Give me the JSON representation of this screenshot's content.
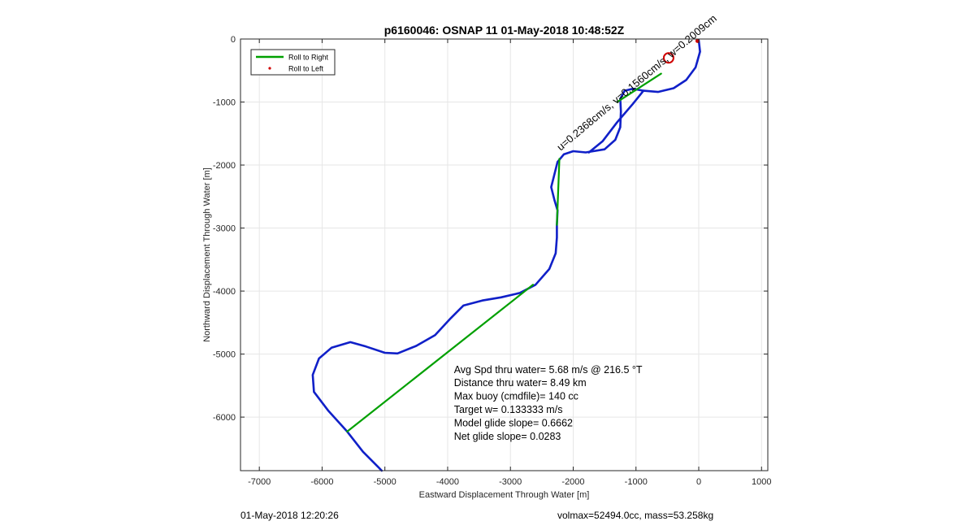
{
  "chart_data": {
    "type": "line",
    "title": "p6160046: OSNAP 11 01-May-2018 10:48:52Z",
    "xlabel": "Eastward Displacement Through Water [m]",
    "ylabel": "Northward Displacement Through Water [m]",
    "xlim": [
      -7300,
      1100
    ],
    "ylim": [
      -6850,
      0
    ],
    "xticks": [
      -7000,
      -6000,
      -5000,
      -4000,
      -3000,
      -2000,
      -1000,
      0,
      1000
    ],
    "yticks": [
      0,
      -1000,
      -2000,
      -3000,
      -4000,
      -5000,
      -6000
    ],
    "grid": true,
    "legend_position": "top-left",
    "legend": [
      {
        "label": "Roll to Right",
        "color": "#00a000",
        "style": "line"
      },
      {
        "label": "Roll to Left",
        "color": "#d00000",
        "style": "dot"
      }
    ],
    "series": [
      {
        "color": "#1020c8",
        "points": [
          [
            0,
            -20
          ],
          [
            20,
            -200
          ],
          [
            -50,
            -450
          ],
          [
            -200,
            -650
          ],
          [
            -400,
            -780
          ],
          [
            -650,
            -840
          ],
          [
            -880,
            -820
          ],
          [
            -1050,
            -790
          ],
          [
            -1180,
            -820
          ],
          [
            -1250,
            -950
          ],
          [
            -1240,
            -1150
          ],
          [
            -1250,
            -1400
          ],
          [
            -1330,
            -1600
          ],
          [
            -1500,
            -1750
          ],
          [
            -1800,
            -1800
          ],
          [
            -2000,
            -1780
          ],
          [
            -2150,
            -1830
          ],
          [
            -2250,
            -1950
          ],
          [
            -2300,
            -2150
          ],
          [
            -2350,
            -2350
          ],
          [
            -2300,
            -2550
          ],
          [
            -2250,
            -2720
          ],
          [
            -2260,
            -2950
          ],
          [
            -2260,
            -3150
          ],
          [
            -2280,
            -3400
          ],
          [
            -2380,
            -3650
          ],
          [
            -2600,
            -3900
          ],
          [
            -2850,
            -4030
          ],
          [
            -3150,
            -4100
          ],
          [
            -3450,
            -4150
          ],
          [
            -3750,
            -4230
          ],
          [
            -3950,
            -4430
          ],
          [
            -4200,
            -4700
          ],
          [
            -4500,
            -4870
          ],
          [
            -4800,
            -4990
          ],
          [
            -5000,
            -4980
          ],
          [
            -5300,
            -4880
          ],
          [
            -5550,
            -4810
          ],
          [
            -5850,
            -4900
          ],
          [
            -6050,
            -5070
          ],
          [
            -6150,
            -5330
          ],
          [
            -6130,
            -5600
          ],
          [
            -5900,
            -5900
          ],
          [
            -5600,
            -6230
          ],
          [
            -5350,
            -6550
          ],
          [
            -5100,
            -6800
          ],
          [
            -5050,
            -6850
          ]
        ]
      },
      {
        "color": "#1020c8",
        "points": [
          [
            -880,
            -820
          ],
          [
            -1050,
            -1030
          ],
          [
            -1300,
            -1320
          ],
          [
            -1530,
            -1620
          ],
          [
            -1750,
            -1800
          ]
        ]
      },
      {
        "name": "Roll to Right",
        "color": "#00a000",
        "points": [
          [
            -5600,
            -6230
          ],
          [
            -2640,
            -3900
          ]
        ]
      },
      {
        "name": "Roll to Right",
        "color": "#00a000",
        "points": [
          [
            -2260,
            -2950
          ],
          [
            -2220,
            -1900
          ]
        ]
      },
      {
        "name": "Roll to Right",
        "color": "#00a000",
        "points": [
          [
            -1300,
            -1000
          ],
          [
            -600,
            -550
          ]
        ]
      }
    ],
    "markers": [
      {
        "x": -480,
        "y": -300,
        "color": "#d00000",
        "shape": "circle"
      },
      {
        "x": -20,
        "y": -30,
        "color": "#d00000",
        "shape": "dot"
      }
    ],
    "rotated_labels": [
      {
        "text": "u=0.2368cm/s, v=0.1560cm/s, w=0.2009cm",
        "x": -2200,
        "y": -1780,
        "angle": -40
      }
    ],
    "annotation_lines": [
      "Avg Spd thru water=  5.68 m/s @ 216.5 °T",
      "Distance thru water=  8.49 km",
      "Max buoy (cmdfile)= 140 cc",
      "Target w= 0.133333 m/s",
      "Model glide slope= 0.6662",
      "Net glide slope= 0.0283"
    ],
    "annotation_anchor": {
      "x": -3900,
      "y": -5300
    }
  },
  "footer": {
    "left": "01-May-2018 12:20:26",
    "right": "volmax=52494.0cc, mass=53.258kg"
  },
  "colors": {
    "axis": "#262626",
    "grid": "#e6e6e6"
  }
}
